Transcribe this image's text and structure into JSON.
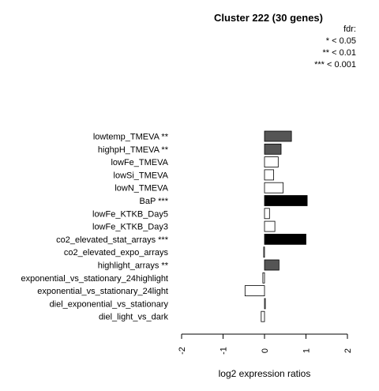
{
  "chart_data": {
    "type": "bar",
    "orientation": "horizontal",
    "title": "Cluster 222 (30 genes)",
    "xlabel": "log2 expression ratios",
    "ylabel": "",
    "xlim": [
      -2,
      2
    ],
    "xticks": [
      "-2",
      "-1",
      "0",
      "1",
      "2"
    ],
    "grid": false,
    "legend": {
      "placement": "top-right",
      "title": "fdr:",
      "entries": [
        "* < 0.05",
        "** < 0.01",
        "*** < 0.001"
      ]
    },
    "colors": {
      "fdr_lt_0.001": "#000000",
      "fdr_lt_0.01": "#555555",
      "not_significant": "#ffffff",
      "border": "#000000"
    },
    "categories": [
      "lowtemp_TMEVA **",
      "highpH_TMEVA **",
      "lowFe_TMEVA",
      "lowSi_TMEVA",
      "lowN_TMEVA",
      "BaP ***",
      "lowFe_KTKB_Day5",
      "lowFe_KTKB_Day3",
      "co2_elevated_stat_arrays ***",
      "co2_elevated_expo_arrays",
      "highlight_arrays **",
      "exponential_vs_stationary_24highlight",
      "exponential_vs_stationary_24light",
      "diel_exponential_vs_stationary",
      "diel_light_vs_dark"
    ],
    "values": [
      0.65,
      0.4,
      0.33,
      0.22,
      0.45,
      1.03,
      0.12,
      0.25,
      1.0,
      -0.02,
      0.35,
      -0.04,
      -0.47,
      0.02,
      -0.08
    ],
    "significance": [
      "**",
      "**",
      "",
      "",
      "",
      "***",
      "",
      "",
      "***",
      "",
      "**",
      "",
      "",
      "",
      ""
    ]
  }
}
